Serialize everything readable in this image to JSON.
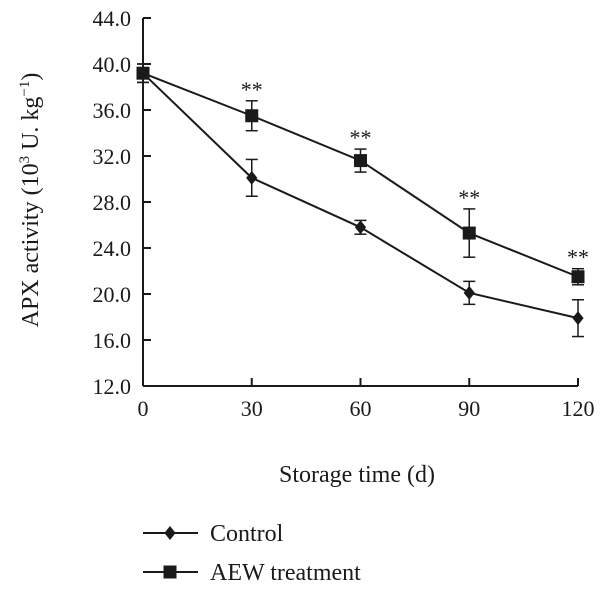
{
  "chart_data": {
    "type": "line",
    "xlabel": "Storage time (d)",
    "ylabel_main": "APX activity (10",
    "ylabel_exp": "3",
    "ylabel_unit": " U. kg",
    "ylabel_unit_exp": "−1",
    "ylabel_close": ")",
    "x": [
      0,
      30,
      60,
      90,
      120
    ],
    "x_ticks": [
      "0",
      "30",
      "60",
      "90",
      "120"
    ],
    "y_ticks": [
      "12.0",
      "16.0",
      "20.0",
      "24.0",
      "28.0",
      "32.0",
      "36.0",
      "40.0",
      "44.0"
    ],
    "xlim": [
      0,
      120
    ],
    "ylim": [
      12,
      44
    ],
    "grid": false,
    "legend_position": "bottom",
    "series": [
      {
        "name": "Control",
        "marker": "diamond",
        "values": [
          39.2,
          30.1,
          25.8,
          20.1,
          17.9
        ],
        "errors": [
          0.8,
          1.6,
          0.6,
          1.0,
          1.6
        ]
      },
      {
        "name": "AEW treatment",
        "marker": "square",
        "values": [
          39.2,
          35.5,
          31.6,
          25.3,
          21.5
        ],
        "errors": [
          0.8,
          1.3,
          1.0,
          2.1,
          0.7
        ]
      }
    ],
    "annotations": [
      {
        "x": 30,
        "text": "**"
      },
      {
        "x": 60,
        "text": "**"
      },
      {
        "x": 90,
        "text": "**"
      },
      {
        "x": 120,
        "text": "**"
      }
    ],
    "colors": {
      "line": "#1a1a1a",
      "background": "#ffffff"
    }
  }
}
